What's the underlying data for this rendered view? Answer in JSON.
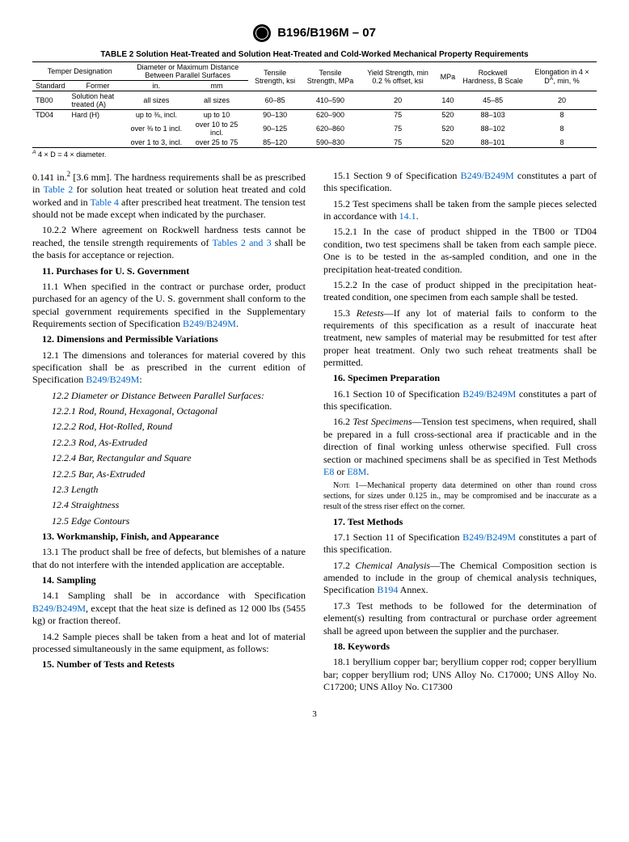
{
  "header": {
    "title": "B196/B196M – 07"
  },
  "table": {
    "title": "TABLE 2 Solution Heat-Treated and Solution Heat-Treated and Cold-Worked Mechanical Property Requirements",
    "headers": {
      "temper": "Temper Designation",
      "diameter": "Diameter or Maximum Distance Between Parallel Surfaces",
      "standard": "Standard",
      "former": "Former",
      "in": "in.",
      "mm": "mm",
      "ts_ksi": "Tensile Strength, ksi",
      "ts_mpa": "Tensile Strength, MPa",
      "yield": "Yield Strength, min 0.2 % offset, ksi",
      "yield_mpa": "MPa",
      "rockwell": "Rockwell Hardness, B Scale",
      "elong": "Elongation in 4 × D",
      "elong_sup": "A",
      "elong_unit": ", min, %"
    },
    "rows": [
      {
        "std": "TB00",
        "former": "Solution heat treated (A)",
        "in": "all sizes",
        "mm": "all sizes",
        "ts_ksi": "60–85",
        "ts_mpa": "410–590",
        "yksi": "20",
        "ympa": "140",
        "hb": "45–85",
        "el": "20"
      },
      {
        "std": "TD04",
        "former": "Hard (H)",
        "in": "up to ⅜, incl.",
        "mm": "up to 10",
        "ts_ksi": "90–130",
        "ts_mpa": "620–900",
        "yksi": "75",
        "ympa": "520",
        "hb": "88–103",
        "el": "8"
      },
      {
        "std": "",
        "former": "",
        "in": "over ⅜ to 1 incl.",
        "mm": "over 10 to 25 incl.",
        "ts_ksi": "90–125",
        "ts_mpa": "620–860",
        "yksi": "75",
        "ympa": "520",
        "hb": "88–102",
        "el": "8"
      },
      {
        "std": "",
        "former": "",
        "in": "over 1 to 3, incl.",
        "mm": "over 25 to 75",
        "ts_ksi": "85–120",
        "ts_mpa": "590–830",
        "yksi": "75",
        "ympa": "520",
        "hb": "88–101",
        "el": "8"
      }
    ],
    "footnote_sup": "A",
    "footnote": " 4 × D = 4 × diameter."
  },
  "body": {
    "p1a": "0.141 in.",
    "p1sup": "2",
    "p1b": " [3.6 mm]. The hardness requirements shall be as prescribed in ",
    "p1link1": "Table 2",
    "p1c": " for solution heat treated or solution heat treated and cold worked and in ",
    "p1link2": "Table 4",
    "p1d": " after prescribed heat treatment. The tension test should not be made except when indicated by the purchaser.",
    "p2a": "10.2.2 Where agreement on Rockwell hardness tests cannot be reached, the tensile strength requirements of ",
    "p2link": "Tables 2 and 3",
    "p2b": " shall be the basis for acceptance or rejection.",
    "s11": "11. Purchases for U. S. Government",
    "p11a": "11.1 When specified in the contract or purchase order, product purchased for an agency of the U. S. government shall conform to the special government requirements specified in the Supplementary Requirements section of Specification ",
    "p11link": "B249/B249M",
    "p11b": ".",
    "s12": "12. Dimensions and Permissible Variations",
    "p12a": "12.1 The dimensions and tolerances for material covered by this specification shall be as prescribed in the current edition of Specification ",
    "p12link": "B249/B249M",
    "p12b": ":",
    "p12_2": "12.2 Diameter or Distance Between Parallel Surfaces:",
    "p12_2_1": "12.2.1 Rod, Round, Hexagonal, Octagonal",
    "p12_2_2": "12.2.2 Rod, Hot-Rolled, Round",
    "p12_2_3": "12.2.3 Rod, As-Extruded",
    "p12_2_4": "12.2.4 Bar, Rectangular and Square",
    "p12_2_5": "12.2.5 Bar, As-Extruded",
    "p12_3": "12.3 Length",
    "p12_4": "12.4 Straightness",
    "p12_5": "12.5 Edge Contours",
    "s13": "13. Workmanship, Finish, and Appearance",
    "p13": "13.1 The product shall be free of defects, but blemishes of a nature that do not interfere with the intended application are acceptable.",
    "s14": "14. Sampling",
    "p14a": "14.1 Sampling shall be in accordance with Specification ",
    "p14link": "B249/B249M",
    "p14b": ", except that the heat size is defined as 12 000 lbs (5455 kg) or fraction thereof.",
    "p14_2": "14.2 Sample pieces shall be taken from a heat and lot of material processed simultaneously in the same equipment, as follows:",
    "s15": "15. Number of Tests and Retests",
    "p15a": "15.1 Section 9 of Specification ",
    "p15link": "B249/B249M",
    "p15b": " constitutes a part of this specification.",
    "p15_2a": "15.2 Test specimens shall be taken from the sample pieces selected in accordance with ",
    "p15_2link": "14.1",
    "p15_2b": ".",
    "p15_2_1": "15.2.1 In the case of product shipped in the TB00 or TD04 condition, two test specimens shall be taken from each sample piece. One is to be tested in the as-sampled condition, and one in the precipitation heat-treated condition.",
    "p15_2_2": "15.2.2 In the case of product shipped in the precipitation heat-treated condition, one specimen from each sample shall be tested.",
    "p15_3lbl": "15.3 ",
    "p15_3it": "Retests",
    "p15_3": "—If any lot of material fails to conform to the requirements of this specification as a result of inaccurate heat treatment, new samples of material may be resubmitted for test after proper heat treatment. Only two such reheat treatments shall be permitted.",
    "s16": "16. Specimen Preparation",
    "p16a": "16.1 Section 10 of Specification ",
    "p16link": "B249/B249M",
    "p16b": " constitutes a part of this specification.",
    "p16_2lbl": "16.2 ",
    "p16_2it": "Test Specimens",
    "p16_2a": "—Tension test specimens, when required, shall be prepared in a full cross-sectional area if practicable and in the direction of final working unless otherwise specified. Full cross section or machined specimens shall be as specified in Test Methods ",
    "p16_2l1": "E8",
    "p16_2or": " or ",
    "p16_2l2": "E8M",
    "p16_2b": ".",
    "note1lbl": "Note",
    "note1": " 1—Mechanical property data determined on other than round cross sections, for sizes under 0.125 in., may be compromised and be inaccurate as a result of the stress riser effect on the corner.",
    "s17": "17. Test Methods",
    "p17a": "17.1 Section 11 of Specification ",
    "p17link": "B249/B249M",
    "p17b": " constitutes a part of this specification.",
    "p17_2lbl": "17.2 ",
    "p17_2it": "Chemical Analysis",
    "p17_2a": "—The Chemical Composition section is amended to include in the group of chemical analysis techniques, Specification ",
    "p17_2link": "B194",
    "p17_2b": " Annex.",
    "p17_3": "17.3 Test methods to be followed for the determination of element(s) resulting from contractural or purchase order agreement shall be agreed upon between the supplier and the purchaser.",
    "s18": "18. Keywords",
    "p18": "18.1 beryllium copper bar; beryllium copper rod; copper beryllium bar; copper beryllium rod; UNS Alloy No. C17000; UNS Alloy No. C17200; UNS Alloy No. C17300"
  },
  "pagenum": "3"
}
